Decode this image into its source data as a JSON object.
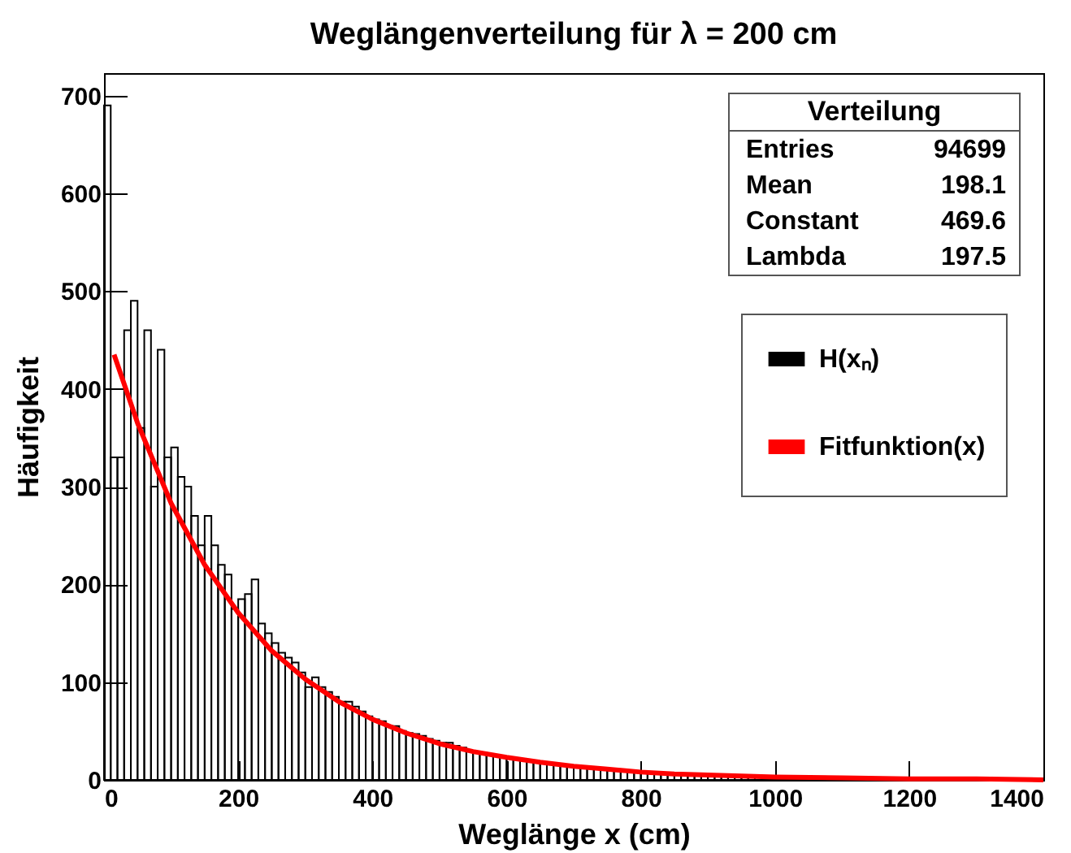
{
  "chart_data": {
    "type": "histogram",
    "title": "Weglängenverteilung für λ = 200 cm",
    "xlabel": "Weglänge x (cm)",
    "ylabel": "Häufigkeit",
    "xlim": [
      0,
      1400
    ],
    "ylim": [
      0,
      723
    ],
    "xticks": [
      0,
      200,
      400,
      600,
      800,
      1000,
      1200,
      1400
    ],
    "yticks": [
      0,
      100,
      200,
      300,
      400,
      500,
      600,
      700
    ],
    "grid": false,
    "legend": "top right",
    "annotations": [
      "Verteilung",
      "Entries",
      "94699",
      "Mean",
      "198.1",
      "Constant",
      "469.6",
      "Lambda",
      "197.5"
    ],
    "bins": [
      0,
      10,
      20,
      30,
      40,
      50,
      60,
      70,
      80,
      90,
      100,
      110,
      120,
      130,
      140,
      150,
      160,
      170,
      180,
      190,
      200,
      210,
      220,
      230,
      240,
      250,
      260,
      270,
      280,
      290,
      300,
      310,
      320,
      330,
      340,
      350,
      360,
      370,
      380,
      390,
      400,
      410,
      420,
      430,
      440,
      450,
      460,
      470,
      480,
      490,
      500,
      510,
      520,
      530,
      540,
      550,
      560,
      570,
      580,
      590,
      600,
      610,
      620,
      630,
      640,
      650,
      660,
      670,
      680,
      690,
      700,
      710,
      720,
      730,
      740,
      750,
      760,
      770,
      780,
      790,
      800,
      810,
      820,
      830,
      840,
      850,
      860,
      870,
      880,
      890,
      900,
      910,
      920,
      930,
      940,
      950,
      960,
      970,
      980,
      990,
      1000,
      1010,
      1020,
      1030,
      1040,
      1050,
      1060,
      1070,
      1080,
      1090,
      1100,
      1110,
      1120,
      1130,
      1140,
      1150,
      1160,
      1170,
      1180,
      1190,
      1200,
      1210,
      1220,
      1230,
      1240,
      1250,
      1260,
      1270,
      1280,
      1290,
      1300,
      1310,
      1320,
      1330,
      1340,
      1350,
      1360,
      1370,
      1380,
      1390,
      1400
    ],
    "series": [
      {
        "name": "H(xₙ)",
        "color": "#000000",
        "values": [
          690,
          330,
          330,
          460,
          490,
          360,
          460,
          300,
          440,
          330,
          340,
          310,
          300,
          270,
          240,
          270,
          240,
          220,
          210,
          175,
          185,
          190,
          205,
          160,
          150,
          140,
          130,
          125,
          120,
          110,
          95,
          105,
          95,
          90,
          85,
          80,
          80,
          75,
          70,
          65,
          62,
          60,
          55,
          55,
          50,
          48,
          47,
          45,
          42,
          40,
          38,
          38,
          35,
          33,
          30,
          29,
          28,
          25,
          24,
          23,
          22,
          21,
          20,
          19,
          18,
          17,
          17,
          16,
          15,
          14,
          14,
          13,
          12,
          12,
          11,
          11,
          10,
          10,
          9,
          9,
          8,
          8,
          7,
          7,
          7,
          6,
          6,
          6,
          5,
          5,
          5,
          5,
          4,
          4,
          4,
          4,
          4,
          3,
          3,
          3,
          3,
          3,
          3,
          3,
          2,
          2,
          2,
          2,
          2,
          2,
          2,
          2,
          2,
          2,
          2,
          2,
          2,
          2,
          2,
          2,
          1,
          1,
          1,
          1,
          1,
          1,
          1,
          1,
          1,
          1,
          1,
          1,
          1,
          1,
          1,
          0,
          1,
          0,
          0,
          0
        ]
      },
      {
        "type": "line",
        "name": "Fitfunktion(x)",
        "color": "#ff0000",
        "x": [
          15,
          50,
          100,
          150,
          200,
          250,
          300,
          350,
          400,
          450,
          500,
          550,
          600,
          650,
          700,
          750,
          800,
          850,
          900,
          950,
          1000,
          1100,
          1200,
          1300,
          1400
        ],
        "values": [
          435,
          365,
          283,
          220,
          171,
          132,
          103,
          80,
          62,
          48,
          37,
          29,
          23,
          18,
          14,
          11,
          8,
          6,
          5,
          4,
          3,
          2,
          1,
          1,
          0
        ]
      }
    ]
  }
}
